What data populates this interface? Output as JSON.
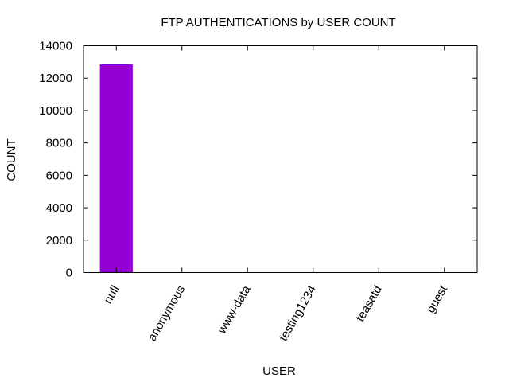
{
  "chart_data": {
    "type": "bar",
    "title": "FTP AUTHENTICATIONS by USER COUNT",
    "xlabel": "USER",
    "ylabel": "COUNT",
    "categories": [
      "null",
      "anonymous",
      "www-data",
      "testing1234",
      "teasatd",
      "guest"
    ],
    "values": [
      12850,
      0,
      0,
      0,
      0,
      0
    ],
    "ylim": [
      0,
      14000
    ],
    "yticks": [
      0,
      2000,
      4000,
      6000,
      8000,
      10000,
      12000,
      14000
    ],
    "bar_color": "#9400d3",
    "grid": false,
    "legend": "none"
  }
}
